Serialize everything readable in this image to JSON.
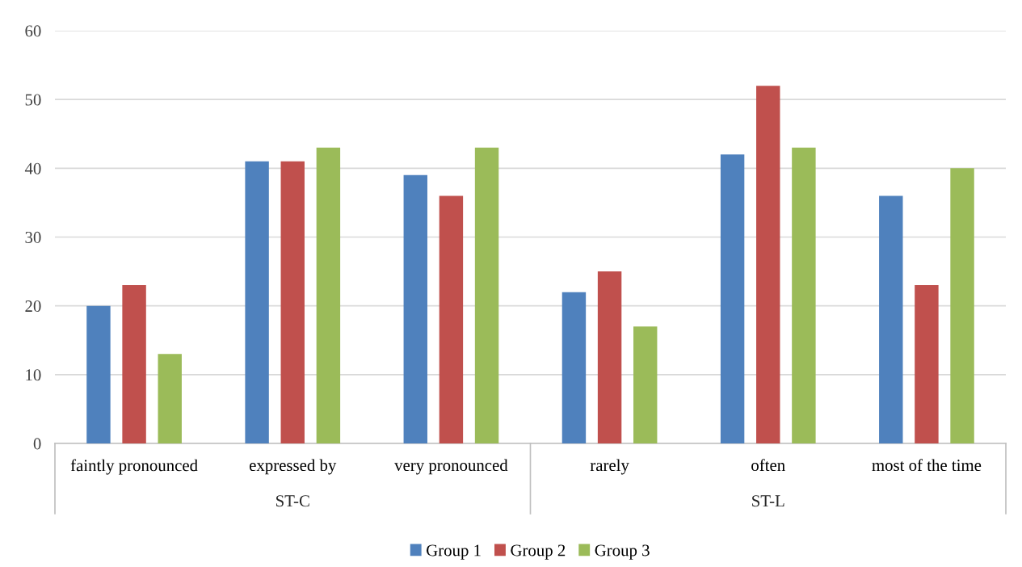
{
  "chart_data": {
    "type": "bar",
    "categories": [
      "faintly pronounced",
      "expressed by",
      "very pronounced",
      "rarely",
      "often",
      "most of the time"
    ],
    "series": [
      {
        "name": "Group 1",
        "color": "#4f81bd",
        "values": [
          20,
          41,
          39,
          22,
          42,
          36
        ]
      },
      {
        "name": "Group 2",
        "color": "#c0504d",
        "values": [
          23,
          41,
          36,
          25,
          52,
          23
        ]
      },
      {
        "name": "Group 3",
        "color": "#9bbb59",
        "values": [
          13,
          43,
          43,
          17,
          43,
          40
        ]
      }
    ],
    "annotations": [
      "ST-C",
      "ST-L"
    ],
    "ylim": [
      0,
      60
    ],
    "yticks": [
      0,
      10,
      20,
      30,
      40,
      50,
      60
    ],
    "grid": "y",
    "legend": "bottom"
  }
}
